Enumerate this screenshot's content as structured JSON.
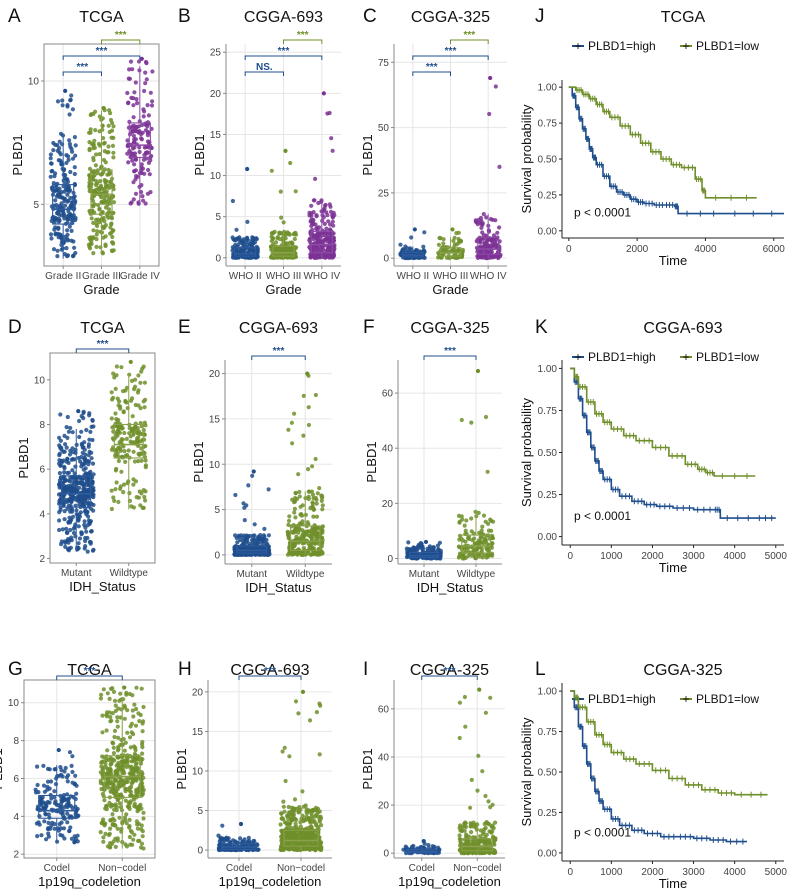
{
  "colors": {
    "blue": "#1f4e8c",
    "green": "#6f8f2a",
    "purple": "#7b3294",
    "grid": "#e6e6e6",
    "axis": "#888888",
    "box_blue": "#2e5c9e",
    "box_green": "#8aa04a",
    "box_purple": "#8e4aa8"
  },
  "chart_data": [
    {
      "panel": "A",
      "type": "box",
      "title": "TCGA",
      "xlabel": "Grade",
      "ylabel": "PLBD1",
      "categories": [
        "Grade II",
        "Grade III",
        "Grade IV"
      ],
      "ylim": [
        2.5,
        11.5
      ],
      "yticks": [
        5,
        10
      ],
      "colors": [
        "blue",
        "green",
        "purple"
      ],
      "grid": true,
      "frame": true,
      "stats": [
        {
          "q1": 4.2,
          "median": 4.8,
          "q3": 5.8,
          "wlo": 2.8,
          "whi": 7.8,
          "n": 220,
          "min": 2.9,
          "max": 9.6
        },
        {
          "q1": 4.6,
          "median": 5.4,
          "q3": 6.4,
          "wlo": 3.0,
          "whi": 8.8,
          "n": 240,
          "min": 2.9,
          "max": 8.9
        },
        {
          "q1": 6.9,
          "median": 7.4,
          "q3": 8.3,
          "wlo": 5.0,
          "whi": 10.6,
          "n": 150,
          "min": 4.9,
          "max": 10.9
        }
      ],
      "comparisons": [
        {
          "from": 0,
          "to": 1,
          "label": "***",
          "color": "blue"
        },
        {
          "from": 0,
          "to": 2,
          "label": "***",
          "color": "blue"
        },
        {
          "from": 1,
          "to": 2,
          "label": "***",
          "color": "green"
        }
      ]
    },
    {
      "panel": "B",
      "type": "box",
      "title": "CGGA-693",
      "xlabel": "Grade",
      "ylabel": "PLBD1",
      "categories": [
        "WHO II",
        "WHO III",
        "WHO IV"
      ],
      "ylim": [
        -1,
        26
      ],
      "yticks": [
        0,
        5,
        10,
        15,
        20,
        25
      ],
      "colors": [
        "blue",
        "green",
        "purple"
      ],
      "grid": true,
      "frame": false,
      "stats": [
        {
          "q1": 0.2,
          "median": 0.5,
          "q3": 1.2,
          "wlo": 0,
          "whi": 2.5,
          "n": 170,
          "min": 0,
          "max": 10.8
        },
        {
          "q1": 0.2,
          "median": 0.6,
          "q3": 1.4,
          "wlo": 0,
          "whi": 3.2,
          "n": 170,
          "min": 0,
          "max": 13
        },
        {
          "q1": 0.6,
          "median": 1.6,
          "q3": 3.2,
          "wlo": 0,
          "whi": 7.0,
          "n": 250,
          "min": 0,
          "max": 20
        }
      ],
      "comparisons": [
        {
          "from": 0,
          "to": 1,
          "label": "NS.",
          "color": "blue"
        },
        {
          "from": 0,
          "to": 2,
          "label": "***",
          "color": "blue"
        },
        {
          "from": 1,
          "to": 2,
          "label": "***",
          "color": "green"
        }
      ]
    },
    {
      "panel": "C",
      "type": "box",
      "title": "CGGA-325",
      "xlabel": "Grade",
      "ylabel": "PLBD1",
      "categories": [
        "WHO II",
        "WHO III",
        "WHO IV"
      ],
      "ylim": [
        -3,
        82
      ],
      "yticks": [
        0,
        25,
        50,
        75
      ],
      "colors": [
        "blue",
        "green",
        "purple"
      ],
      "grid": true,
      "frame": false,
      "stats": [
        {
          "q1": 0.5,
          "median": 1.2,
          "q3": 2.2,
          "wlo": 0,
          "whi": 4.5,
          "n": 100,
          "min": 0,
          "max": 11
        },
        {
          "q1": 0.8,
          "median": 2.0,
          "q3": 4.0,
          "wlo": 0,
          "whi": 8.0,
          "n": 70,
          "min": 0,
          "max": 11
        },
        {
          "q1": 1.5,
          "median": 3.5,
          "q3": 8.0,
          "wlo": 0,
          "whi": 17.0,
          "n": 140,
          "min": 0,
          "max": 69
        }
      ],
      "comparisons": [
        {
          "from": 0,
          "to": 1,
          "label": "***",
          "color": "blue"
        },
        {
          "from": 0,
          "to": 2,
          "label": "***",
          "color": "blue"
        },
        {
          "from": 1,
          "to": 2,
          "label": "***",
          "color": "green"
        }
      ]
    },
    {
      "panel": "D",
      "type": "box",
      "title": "TCGA",
      "xlabel": "IDH_Status",
      "ylabel": "PLBD1",
      "categories": [
        "Mutant",
        "Wildtype"
      ],
      "ylim": [
        1.8,
        11.2
      ],
      "yticks": [
        2,
        4,
        6,
        8,
        10
      ],
      "colors": [
        "blue",
        "green"
      ],
      "grid": false,
      "frame": true,
      "stats": [
        {
          "q1": 4.3,
          "median": 4.9,
          "q3": 5.7,
          "wlo": 2.3,
          "whi": 7.8,
          "n": 420,
          "min": 2.3,
          "max": 8.6
        },
        {
          "q1": 6.5,
          "median": 7.1,
          "q3": 8.0,
          "wlo": 4.2,
          "whi": 10.3,
          "n": 200,
          "min": 2.8,
          "max": 10.8
        }
      ],
      "comparisons": [
        {
          "from": 0,
          "to": 1,
          "label": "***",
          "color": "blue"
        }
      ]
    },
    {
      "panel": "E",
      "type": "box",
      "title": "CGGA-693",
      "xlabel": "IDH_Status",
      "ylabel": "PLBD1",
      "categories": [
        "Mutant",
        "Wildtype"
      ],
      "ylim": [
        -1,
        21.5
      ],
      "yticks": [
        0,
        5,
        10,
        15,
        20
      ],
      "colors": [
        "blue",
        "green"
      ],
      "grid": true,
      "frame": false,
      "stats": [
        {
          "q1": 0.2,
          "median": 0.5,
          "q3": 1.0,
          "wlo": 0,
          "whi": 2.2,
          "n": 360,
          "min": 0,
          "max": 9.2
        },
        {
          "q1": 0.5,
          "median": 1.5,
          "q3": 3.2,
          "wlo": 0,
          "whi": 7.0,
          "n": 280,
          "min": 0,
          "max": 20
        }
      ],
      "comparisons": [
        {
          "from": 0,
          "to": 1,
          "label": "***",
          "color": "blue"
        }
      ]
    },
    {
      "panel": "F",
      "type": "box",
      "title": "CGGA-325",
      "xlabel": "IDH_Status",
      "ylabel": "PLBD1",
      "categories": [
        "Mutant",
        "Wildtype"
      ],
      "ylim": [
        -2,
        72
      ],
      "yticks": [
        0,
        20,
        40,
        60
      ],
      "colors": [
        "blue",
        "green"
      ],
      "grid": true,
      "frame": false,
      "stats": [
        {
          "q1": 0.3,
          "median": 1.0,
          "q3": 2.2,
          "wlo": 0,
          "whi": 4.5,
          "n": 170,
          "min": 0,
          "max": 6
        },
        {
          "q1": 2.0,
          "median": 4.5,
          "q3": 8.5,
          "wlo": 0,
          "whi": 17.0,
          "n": 140,
          "min": 0,
          "max": 68
        }
      ],
      "comparisons": [
        {
          "from": 0,
          "to": 1,
          "label": "***",
          "color": "blue"
        }
      ]
    },
    {
      "panel": "G",
      "type": "box",
      "title": "TCGA",
      "xlabel": "1p19q_codeletion",
      "ylabel": "PLBD1",
      "categories": [
        "Codel",
        "Non−codel"
      ],
      "ylim": [
        1.8,
        11.2
      ],
      "yticks": [
        2,
        4,
        6,
        8,
        10
      ],
      "colors": [
        "blue",
        "green"
      ],
      "grid": true,
      "frame": true,
      "stats": [
        {
          "q1": 3.9,
          "median": 4.3,
          "q3": 5.1,
          "wlo": 2.6,
          "whi": 6.7,
          "n": 170,
          "min": 2.4,
          "max": 7.5
        },
        {
          "q1": 5.0,
          "median": 6.1,
          "q3": 7.2,
          "wlo": 2.3,
          "whi": 10.3,
          "n": 450,
          "min": 2.3,
          "max": 10.8
        }
      ],
      "comparisons": [
        {
          "from": 0,
          "to": 1,
          "label": "***",
          "color": "blue"
        }
      ]
    },
    {
      "panel": "H",
      "type": "box",
      "title": "CGGA-693",
      "xlabel": "1p19q_codeletion",
      "ylabel": "PLBD1",
      "categories": [
        "Codel",
        "Non−codel"
      ],
      "ylim": [
        -1,
        21.5
      ],
      "yticks": [
        0,
        5,
        10,
        15,
        20
      ],
      "colors": [
        "blue",
        "green"
      ],
      "grid": true,
      "frame": false,
      "stats": [
        {
          "q1": 0.1,
          "median": 0.4,
          "q3": 0.8,
          "wlo": 0,
          "whi": 1.6,
          "n": 150,
          "min": 0,
          "max": 3.3
        },
        {
          "q1": 0.5,
          "median": 1.2,
          "q3": 2.5,
          "wlo": 0,
          "whi": 5.5,
          "n": 500,
          "min": 0,
          "max": 20
        }
      ],
      "comparisons": [
        {
          "from": 0,
          "to": 1,
          "label": "***",
          "color": "blue"
        }
      ]
    },
    {
      "panel": "I",
      "type": "box",
      "title": "CGGA-325",
      "xlabel": "1p19q_codeletion",
      "ylabel": "PLBD1",
      "categories": [
        "Codel",
        "Non−codel"
      ],
      "ylim": [
        -2,
        72
      ],
      "yticks": [
        0,
        20,
        40,
        60
      ],
      "colors": [
        "blue",
        "green"
      ],
      "grid": true,
      "frame": false,
      "stats": [
        {
          "q1": 0.2,
          "median": 0.8,
          "q3": 1.6,
          "wlo": 0,
          "whi": 3.0,
          "n": 80,
          "min": 0,
          "max": 5
        },
        {
          "q1": 1.0,
          "median": 2.8,
          "q3": 6.0,
          "wlo": 0,
          "whi": 13.0,
          "n": 240,
          "min": 0,
          "max": 68
        }
      ],
      "comparisons": [
        {
          "from": 0,
          "to": 1,
          "label": "***",
          "color": "blue"
        }
      ]
    },
    {
      "panel": "J",
      "type": "line",
      "title": "TCGA",
      "xlabel": "Time",
      "ylabel": "Survival probability",
      "xlim": [
        -200,
        6300
      ],
      "xticks": [
        0,
        2000,
        4000,
        6000
      ],
      "ylim": [
        -0.05,
        1.05
      ],
      "yticks": [
        0.0,
        0.25,
        0.5,
        0.75,
        1.0
      ],
      "yticklabels": [
        "0.00",
        "0.25",
        "0.50",
        "0.75",
        "1.00"
      ],
      "legend": [
        "PLBD1=high",
        "PLBD1=low"
      ],
      "pvalue": "p < 0.0001",
      "series": [
        {
          "name": "PLBD1=high",
          "color": "blue",
          "x": [
            0,
            100,
            200,
            300,
            400,
            500,
            600,
            700,
            800,
            1000,
            1200,
            1400,
            1600,
            1800,
            2000,
            2200,
            2500,
            2800,
            3100,
            3200,
            4500,
            6300
          ],
          "y": [
            1.0,
            0.94,
            0.86,
            0.78,
            0.71,
            0.64,
            0.57,
            0.51,
            0.46,
            0.38,
            0.31,
            0.27,
            0.25,
            0.22,
            0.2,
            0.19,
            0.18,
            0.18,
            0.17,
            0.12,
            0.12,
            0.12
          ]
        },
        {
          "name": "PLBD1=low",
          "color": "green",
          "x": [
            0,
            200,
            400,
            600,
            800,
            1000,
            1200,
            1500,
            1800,
            2100,
            2400,
            2700,
            3000,
            3300,
            3700,
            3900,
            4000,
            5500
          ],
          "y": [
            1.0,
            0.98,
            0.95,
            0.92,
            0.88,
            0.83,
            0.79,
            0.73,
            0.67,
            0.61,
            0.55,
            0.5,
            0.46,
            0.44,
            0.36,
            0.28,
            0.23,
            0.23
          ]
        }
      ]
    },
    {
      "panel": "K",
      "type": "line",
      "title": "CGGA-693",
      "xlabel": "Time",
      "ylabel": "Survival probability",
      "xlim": [
        -200,
        5200
      ],
      "xticks": [
        0,
        1000,
        2000,
        3000,
        4000,
        5000
      ],
      "ylim": [
        -0.05,
        1.05
      ],
      "yticks": [
        0.0,
        0.25,
        0.5,
        0.75,
        1.0
      ],
      "yticklabels": [
        "0.00",
        "0.25",
        "0.50",
        "0.75",
        "1.00"
      ],
      "legend": [
        "PLBD1=high",
        "PLBD1=low"
      ],
      "pvalue": "p < 0.0001",
      "series": [
        {
          "name": "PLBD1=high",
          "color": "blue",
          "x": [
            0,
            100,
            200,
            300,
            400,
            500,
            600,
            700,
            800,
            1000,
            1200,
            1500,
            1800,
            2100,
            2500,
            3000,
            3500,
            3650,
            4500,
            5000
          ],
          "y": [
            1.0,
            0.92,
            0.82,
            0.72,
            0.62,
            0.53,
            0.45,
            0.39,
            0.34,
            0.28,
            0.24,
            0.21,
            0.19,
            0.18,
            0.17,
            0.16,
            0.16,
            0.11,
            0.11,
            0.11
          ]
        },
        {
          "name": "PLBD1=low",
          "color": "green",
          "x": [
            0,
            100,
            200,
            400,
            600,
            800,
            1000,
            1300,
            1600,
            2000,
            2400,
            2800,
            3100,
            3300,
            3500,
            4500
          ],
          "y": [
            1.0,
            0.95,
            0.89,
            0.8,
            0.73,
            0.68,
            0.64,
            0.6,
            0.57,
            0.53,
            0.48,
            0.43,
            0.4,
            0.38,
            0.36,
            0.36
          ]
        }
      ]
    },
    {
      "panel": "L",
      "type": "line",
      "title": "CGGA-325",
      "xlabel": "Time",
      "ylabel": "Survival probability",
      "xlim": [
        -200,
        5200
      ],
      "xticks": [
        0,
        1000,
        2000,
        3000,
        4000,
        5000
      ],
      "ylim": [
        -0.05,
        1.05
      ],
      "yticks": [
        0.0,
        0.25,
        0.5,
        0.75,
        1.0
      ],
      "yticklabels": [
        "0.00",
        "0.25",
        "0.50",
        "0.75",
        "1.00"
      ],
      "legend": [
        "PLBD1=high",
        "PLBD1=low"
      ],
      "pvalue": "p < 0.0001",
      "series": [
        {
          "name": "PLBD1=high",
          "color": "blue",
          "x": [
            0,
            100,
            200,
            300,
            400,
            500,
            600,
            700,
            800,
            1000,
            1200,
            1500,
            1800,
            2200,
            2600,
            3000,
            3400,
            3800,
            4300
          ],
          "y": [
            1.0,
            0.9,
            0.78,
            0.66,
            0.55,
            0.46,
            0.38,
            0.32,
            0.27,
            0.21,
            0.17,
            0.14,
            0.12,
            0.1,
            0.1,
            0.09,
            0.08,
            0.07,
            0.07
          ]
        },
        {
          "name": "PLBD1=low",
          "color": "green",
          "x": [
            0,
            100,
            200,
            400,
            600,
            800,
            1000,
            1300,
            1600,
            2000,
            2400,
            2800,
            3200,
            3600,
            4000,
            4800
          ],
          "y": [
            1.0,
            0.96,
            0.9,
            0.81,
            0.73,
            0.67,
            0.62,
            0.58,
            0.55,
            0.51,
            0.46,
            0.42,
            0.39,
            0.37,
            0.36,
            0.36
          ]
        }
      ]
    }
  ]
}
